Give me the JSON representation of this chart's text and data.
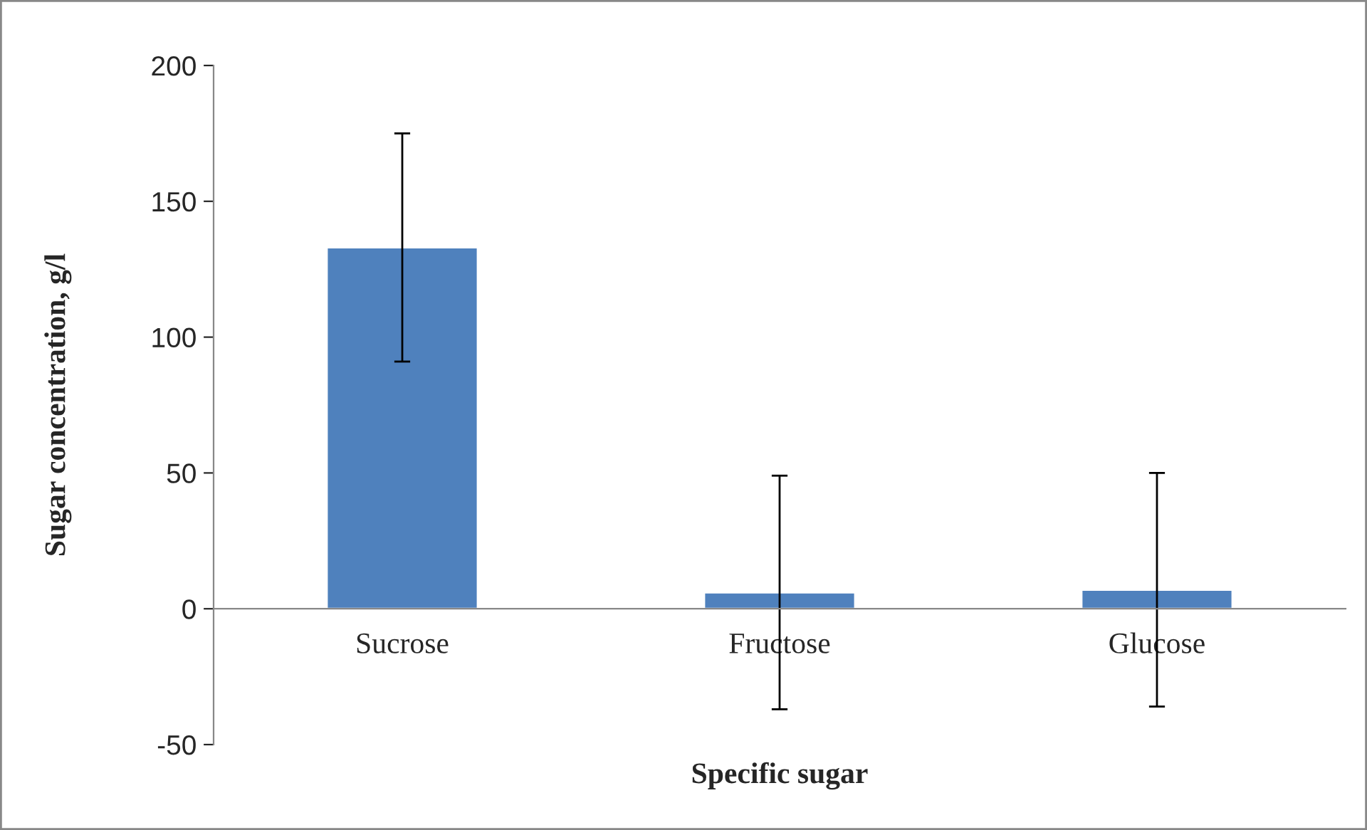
{
  "chart_data": {
    "type": "bar",
    "xlabel": "Specific sugar",
    "ylabel": "Sugar concentration, g/l",
    "categories": [
      "Sucrose",
      "Fructose",
      "Glucose"
    ],
    "values": [
      133,
      6,
      7
    ],
    "errors": [
      42,
      43,
      43
    ],
    "color": "#4f81bd",
    "ylim": [
      -50,
      200
    ],
    "yticks": [
      -50,
      0,
      50,
      100,
      150,
      200
    ],
    "grid": false
  }
}
